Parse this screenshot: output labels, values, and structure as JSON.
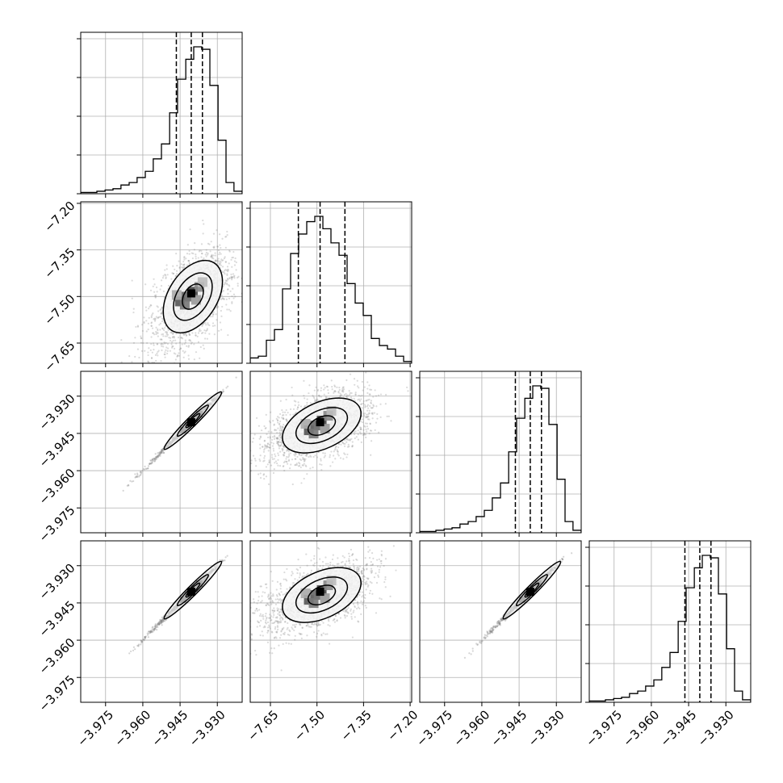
{
  "chart_data": {
    "type": "corner",
    "description_source": "corner plot of 4 parameters with 1D histograms on the diagonal and 2D density contours below",
    "parameters": [
      {
        "index": 0,
        "range": [
          -3.985,
          -3.92
        ],
        "ticks": [
          -3.975,
          -3.96,
          -3.945,
          -3.93
        ],
        "tick_labels": [
          "−3.975",
          "−3.960",
          "−3.945",
          "−3.930"
        ],
        "quantiles": [
          -3.9465,
          -3.9405,
          -3.936
        ]
      },
      {
        "index": 1,
        "range": [
          -7.715,
          -7.195
        ],
        "ticks": [
          -7.65,
          -7.5,
          -7.35,
          -7.2
        ],
        "tick_labels": [
          "−7.65",
          "−7.50",
          "−7.35",
          "−7.20"
        ],
        "quantiles": [
          -7.56,
          -7.49,
          -7.41
        ]
      },
      {
        "index": 2,
        "range": [
          -3.985,
          -3.92
        ],
        "ticks": [
          -3.975,
          -3.96,
          -3.945,
          -3.93
        ],
        "tick_labels": [
          "−3.975",
          "−3.960",
          "−3.945",
          "−3.930"
        ],
        "quantiles": [
          -3.9465,
          -3.9405,
          -3.936
        ]
      },
      {
        "index": 3,
        "range": [
          -3.985,
          -3.92
        ],
        "ticks": [
          -3.975,
          -3.96,
          -3.945,
          -3.93
        ],
        "tick_labels": [
          "−3.975",
          "−3.960",
          "−3.945",
          "−3.930"
        ],
        "quantiles": [
          -3.9465,
          -3.9405,
          -3.936
        ]
      }
    ],
    "histograms": [
      {
        "param": 0,
        "bin_edges": [
          -3.985,
          -3.9817,
          -3.9785,
          -3.9752,
          -3.972,
          -3.9688,
          -3.9655,
          -3.9623,
          -3.959,
          -3.9558,
          -3.9525,
          -3.9492,
          -3.946,
          -3.9427,
          -3.9395,
          -3.9363,
          -3.933,
          -3.9297,
          -3.9265,
          -3.9233,
          -3.92
        ],
        "counts": [
          1,
          1,
          2,
          3,
          4,
          7,
          9,
          13,
          18,
          28,
          40,
          65,
          92,
          108,
          118,
          116,
          87,
          43,
          9,
          2
        ]
      },
      {
        "param": 1,
        "bin_edges": [
          -7.715,
          -7.689,
          -7.663,
          -7.637,
          -7.611,
          -7.585,
          -7.559,
          -7.533,
          -7.507,
          -7.481,
          -7.455,
          -7.429,
          -7.403,
          -7.377,
          -7.351,
          -7.325,
          -7.299,
          -7.273,
          -7.247,
          -7.221,
          -7.195
        ],
        "counts": [
          3,
          4,
          13,
          19,
          42,
          62,
          73,
          80,
          83,
          76,
          68,
          61,
          45,
          34,
          27,
          14,
          10,
          8,
          4,
          1
        ]
      },
      {
        "param": 2,
        "bin_edges": [
          -3.985,
          -3.9817,
          -3.9785,
          -3.9752,
          -3.972,
          -3.9688,
          -3.9655,
          -3.9623,
          -3.959,
          -3.9558,
          -3.9525,
          -3.9492,
          -3.946,
          -3.9427,
          -3.9395,
          -3.9363,
          -3.933,
          -3.9297,
          -3.9265,
          -3.9233,
          -3.92
        ],
        "counts": [
          1,
          1,
          2,
          3,
          4,
          7,
          9,
          13,
          18,
          28,
          40,
          65,
          92,
          108,
          118,
          116,
          87,
          43,
          9,
          2
        ]
      },
      {
        "param": 3,
        "bin_edges": [
          -3.985,
          -3.9817,
          -3.9785,
          -3.9752,
          -3.972,
          -3.9688,
          -3.9655,
          -3.9623,
          -3.959,
          -3.9558,
          -3.9525,
          -3.9492,
          -3.946,
          -3.9427,
          -3.9395,
          -3.9363,
          -3.933,
          -3.9297,
          -3.9265,
          -3.9233,
          -3.92
        ],
        "counts": [
          1,
          1,
          2,
          3,
          4,
          7,
          9,
          13,
          18,
          28,
          40,
          65,
          92,
          108,
          118,
          116,
          87,
          43,
          9,
          2
        ]
      }
    ],
    "density_2d": [
      {
        "row": 1,
        "col": 0,
        "center": [
          -3.9405,
          -7.49
        ],
        "shape": "elongated",
        "correlation": 0.72
      },
      {
        "row": 2,
        "col": 0,
        "center": [
          -3.9405,
          -3.9405
        ],
        "shape": "thin-diagonal",
        "correlation": 0.999
      },
      {
        "row": 2,
        "col": 1,
        "center": [
          -7.49,
          -3.9405
        ],
        "shape": "elongated",
        "correlation": 0.62
      },
      {
        "row": 3,
        "col": 0,
        "center": [
          -3.9405,
          -3.9405
        ],
        "shape": "thin-diagonal",
        "correlation": 0.999
      },
      {
        "row": 3,
        "col": 1,
        "center": [
          -7.49,
          -3.9405
        ],
        "shape": "elongated",
        "correlation": 0.62
      },
      {
        "row": 3,
        "col": 2,
        "center": [
          -3.9405,
          -3.9405
        ],
        "shape": "thin-diagonal",
        "correlation": 0.999
      }
    ],
    "grid": true,
    "contour_levels": 3
  }
}
